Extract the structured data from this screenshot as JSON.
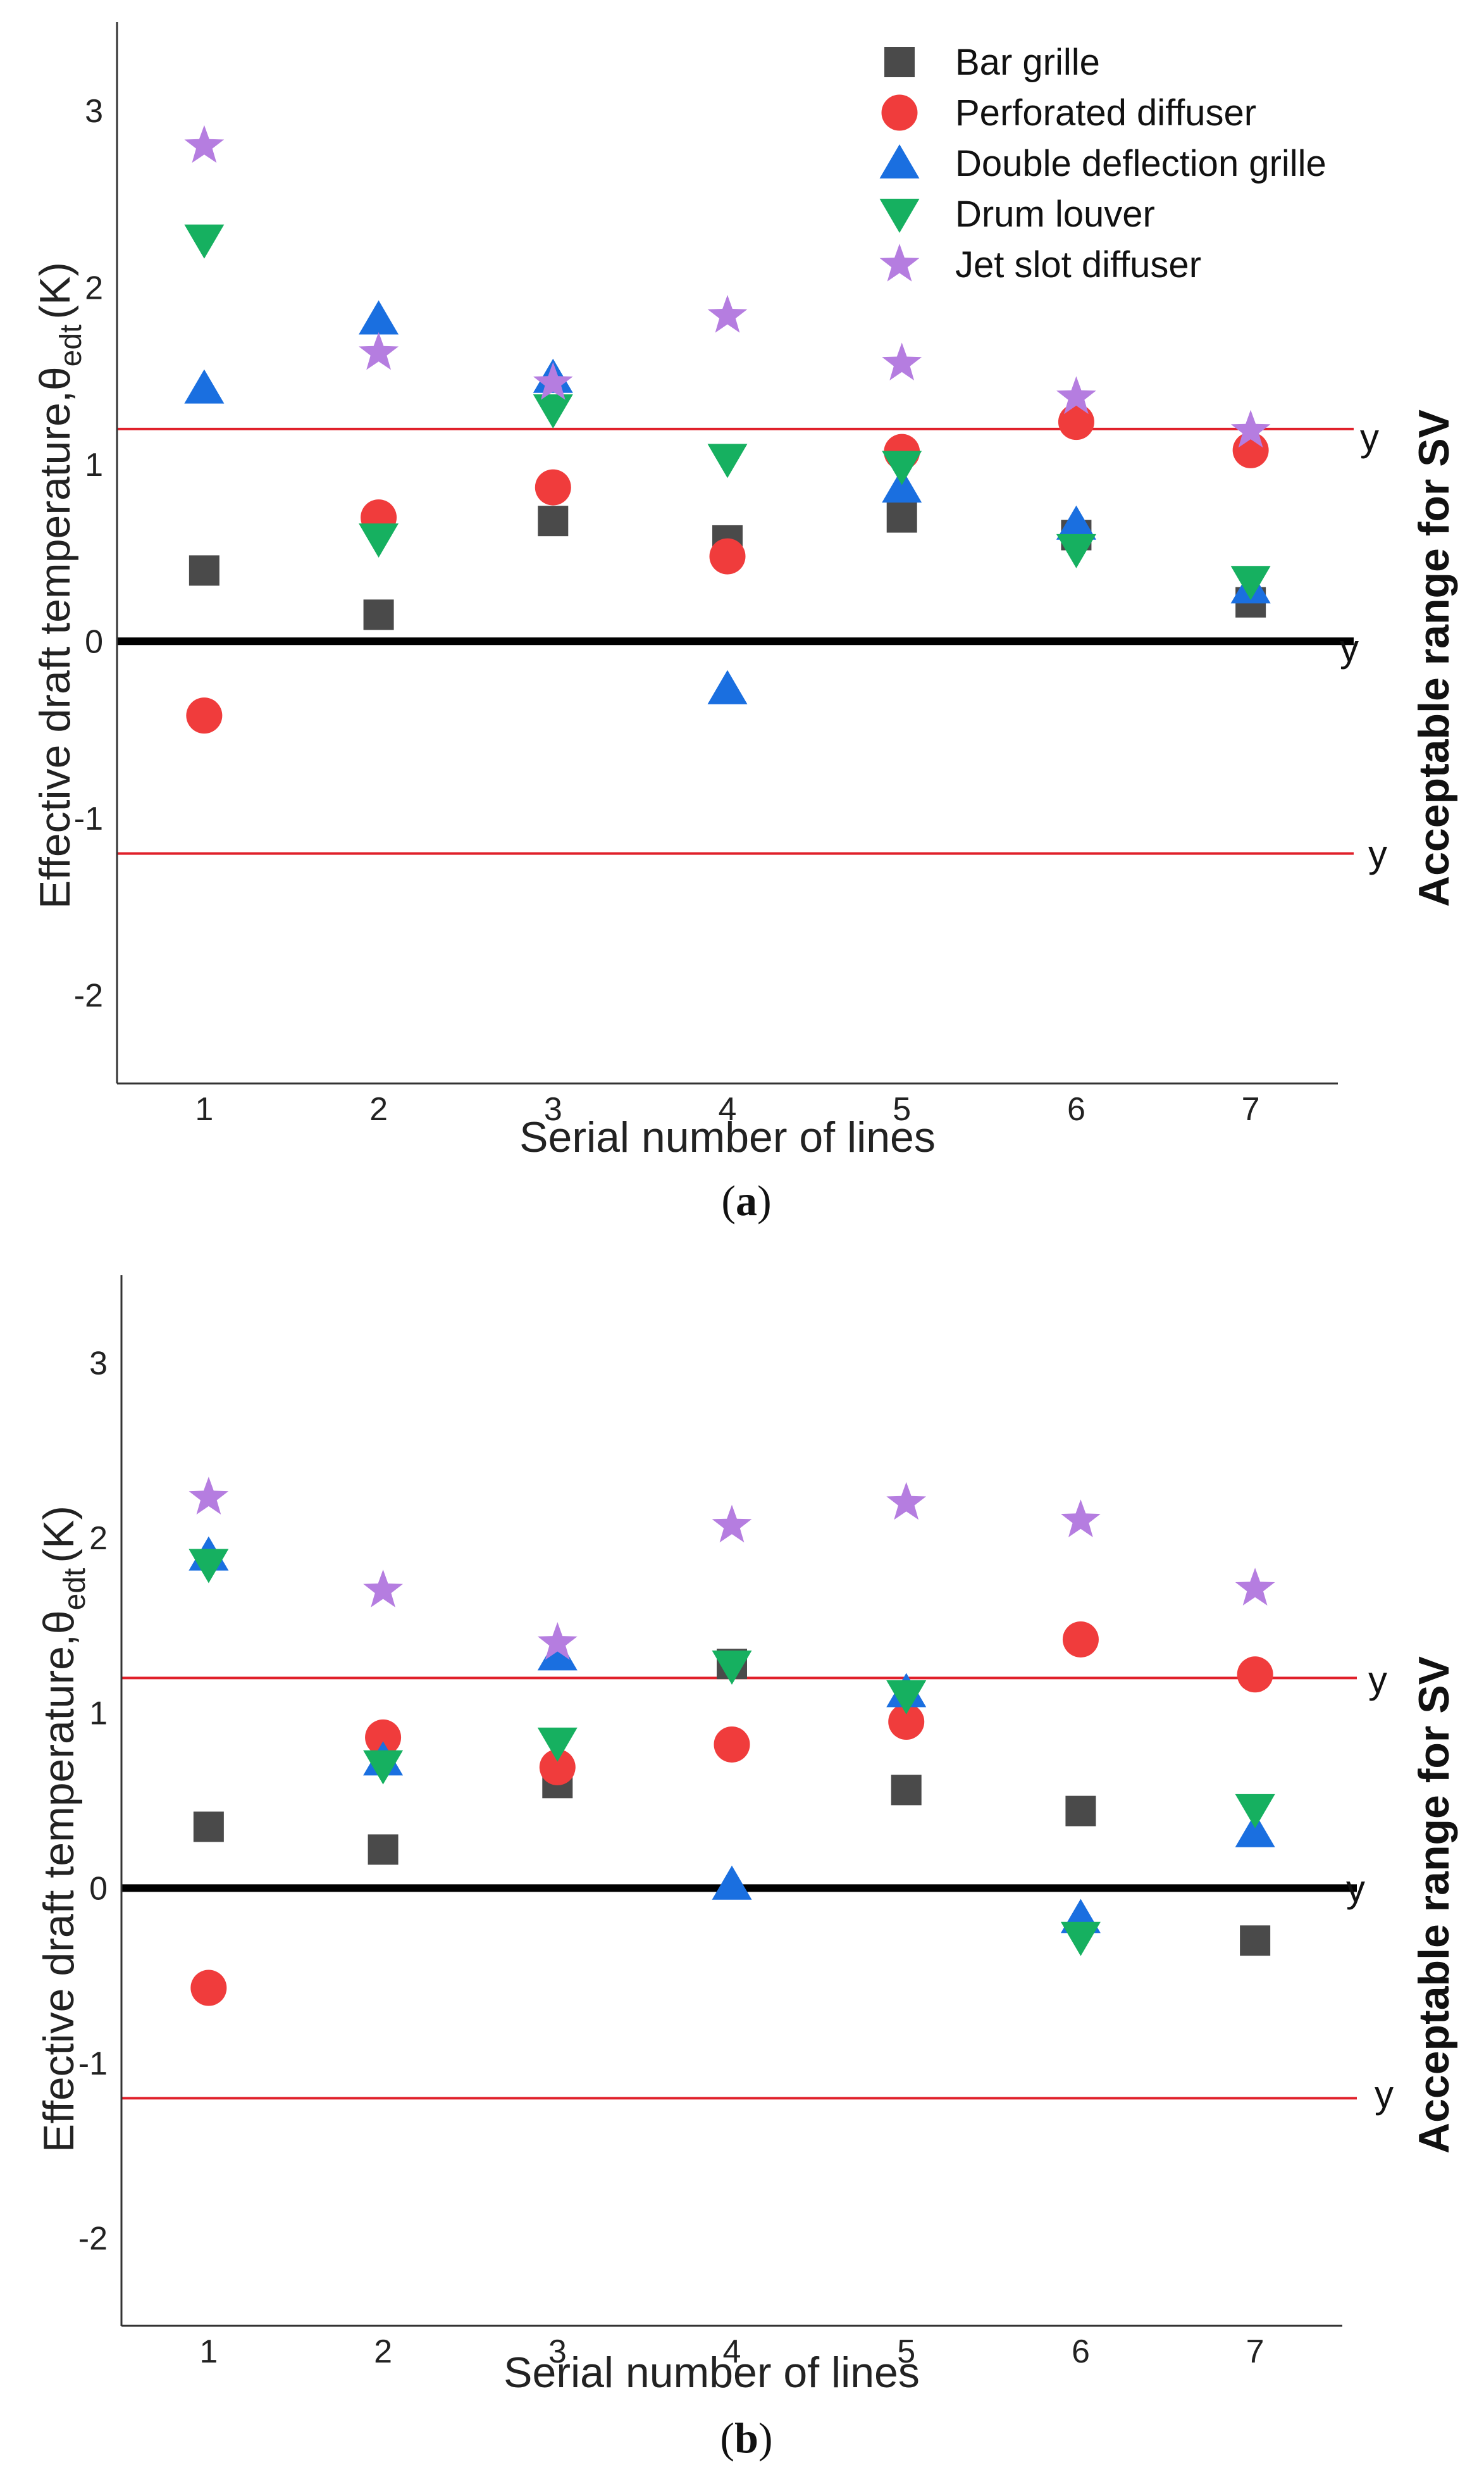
{
  "legend": [
    {
      "name": "Bar grille",
      "color": "#4a4a4a",
      "shape": "square"
    },
    {
      "name": "Perforated diffuser",
      "color": "#f03c3c",
      "shape": "circle"
    },
    {
      "name": "Double deflection grille",
      "color": "#1a6fe0",
      "shape": "triangle-up"
    },
    {
      "name": "Drum louver",
      "color": "#16b060",
      "shape": "triangle-down"
    },
    {
      "name": "Jet slot diffuser",
      "color": "#b57de0",
      "shape": "star"
    }
  ],
  "hline_labels": [
    "y",
    "y",
    "y"
  ],
  "chart_data": [
    {
      "type": "scatter",
      "panel": "a",
      "caption": "a",
      "xlabel": "Serial number of lines",
      "ylabel_main": "Effective draft temperature,θ",
      "ylabel_sub": "edt",
      "ylabel_unit": "(K)",
      "right_label": "Acceptable range for SV",
      "x": [
        1,
        2,
        3,
        4,
        5,
        6,
        7
      ],
      "xlim": [
        0.5,
        7.5
      ],
      "ylim": [
        -2.5,
        3.5
      ],
      "yticks": [
        -2,
        -1,
        0,
        1,
        2,
        3
      ],
      "hlines": [
        {
          "y": 1.2,
          "color": "#e0202a",
          "style": "thin"
        },
        {
          "y": 0,
          "color": "#000000",
          "style": "thick"
        },
        {
          "y": -1.2,
          "color": "#e0202a",
          "style": "thin"
        }
      ],
      "series": [
        {
          "name": "Bar grille",
          "values": [
            0.4,
            0.15,
            0.68,
            0.57,
            0.7,
            0.6,
            0.22
          ]
        },
        {
          "name": "Perforated diffuser",
          "values": [
            -0.42,
            0.7,
            0.87,
            0.48,
            1.07,
            1.24,
            1.08
          ]
        },
        {
          "name": "Double deflection grille",
          "values": [
            1.43,
            1.82,
            1.49,
            -0.27,
            0.87,
            0.66,
            0.3
          ]
        },
        {
          "name": "Drum louver",
          "values": [
            2.27,
            0.58,
            1.31,
            1.03,
            0.99,
            0.52,
            0.34
          ]
        },
        {
          "name": "Jet slot diffuser",
          "values": [
            2.8,
            1.63,
            1.46,
            1.84,
            1.57,
            1.38,
            1.19
          ]
        }
      ]
    },
    {
      "type": "scatter",
      "panel": "b",
      "caption": "b",
      "xlabel": "Serial number of lines",
      "ylabel_main": "Effective draft temperature,θ",
      "ylabel_sub": "edt",
      "ylabel_unit": "(K)",
      "right_label": "Acceptable range for SV",
      "x": [
        1,
        2,
        3,
        4,
        5,
        6,
        7
      ],
      "xlim": [
        0.5,
        7.5
      ],
      "ylim": [
        -2.5,
        3.5
      ],
      "yticks": [
        -2,
        -1,
        0,
        1,
        2,
        3
      ],
      "hlines": [
        {
          "y": 1.2,
          "color": "#e0202a",
          "style": "thin"
        },
        {
          "y": 0,
          "color": "#000000",
          "style": "thick"
        },
        {
          "y": -1.2,
          "color": "#e0202a",
          "style": "thin"
        }
      ],
      "series": [
        {
          "name": "Bar grille",
          "values": [
            0.35,
            0.22,
            0.6,
            1.28,
            0.56,
            0.44,
            -0.3
          ]
        },
        {
          "name": "Perforated diffuser",
          "values": [
            -0.57,
            0.86,
            0.69,
            0.82,
            0.95,
            1.42,
            1.22
          ]
        },
        {
          "name": "Double deflection grille",
          "values": [
            1.9,
            0.73,
            1.33,
            0.02,
            1.12,
            -0.17,
            0.32
          ]
        },
        {
          "name": "Drum louver",
          "values": [
            1.85,
            0.7,
            0.83,
            1.27,
            1.1,
            -0.28,
            0.45
          ]
        },
        {
          "name": "Jet slot diffuser",
          "values": [
            2.23,
            1.7,
            1.4,
            2.07,
            2.2,
            2.1,
            1.71
          ]
        }
      ]
    }
  ]
}
